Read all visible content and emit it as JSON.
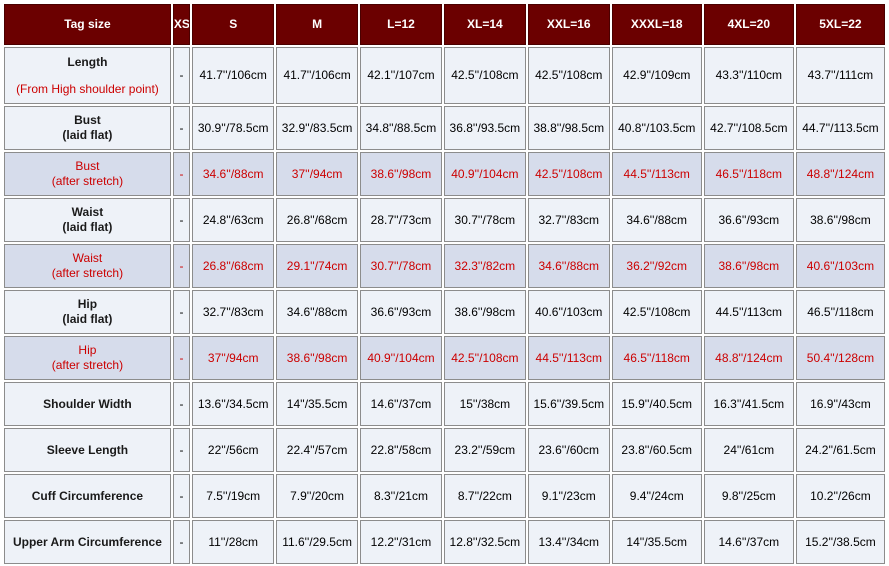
{
  "headers": [
    "Tag size",
    "XS",
    "S",
    "M",
    "L=12",
    "XL=14",
    "XXL=16",
    "XXXL=18",
    "4XL=20",
    "5XL=22"
  ],
  "rows": [
    {
      "label_line1": "Length",
      "label_line2": "(From High shoulder point)",
      "highlight": false,
      "values": [
        "-",
        "41.7''/106cm",
        "41.7''/106cm",
        "42.1''/107cm",
        "42.5''/108cm",
        "42.5''/108cm",
        "42.9''/109cm",
        "43.3''/110cm",
        "43.7''/111cm"
      ]
    },
    {
      "label_line1": "Bust",
      "label_line2": "(laid flat)",
      "highlight": false,
      "values": [
        "-",
        "30.9''/78.5cm",
        "32.9''/83.5cm",
        "34.8''/88.5cm",
        "36.8''/93.5cm",
        "38.8''/98.5cm",
        "40.8''/103.5cm",
        "42.7''/108.5cm",
        "44.7''/113.5cm"
      ]
    },
    {
      "label_line1": "Bust",
      "label_line2": "(after stretch)",
      "highlight": true,
      "values": [
        "-",
        "34.6''/88cm",
        "37''/94cm",
        "38.6''/98cm",
        "40.9''/104cm",
        "42.5''/108cm",
        "44.5''/113cm",
        "46.5''/118cm",
        "48.8''/124cm"
      ]
    },
    {
      "label_line1": "Waist",
      "label_line2": "(laid flat)",
      "highlight": false,
      "values": [
        "-",
        "24.8''/63cm",
        "26.8''/68cm",
        "28.7''/73cm",
        "30.7''/78cm",
        "32.7''/83cm",
        "34.6''/88cm",
        "36.6''/93cm",
        "38.6''/98cm"
      ]
    },
    {
      "label_line1": "Waist",
      "label_line2": "(after stretch)",
      "highlight": true,
      "values": [
        "-",
        "26.8''/68cm",
        "29.1''/74cm",
        "30.7''/78cm",
        "32.3''/82cm",
        "34.6''/88cm",
        "36.2''/92cm",
        "38.6''/98cm",
        "40.6''/103cm"
      ]
    },
    {
      "label_line1": "Hip",
      "label_line2": "(laid flat)",
      "highlight": false,
      "values": [
        "-",
        "32.7''/83cm",
        "34.6''/88cm",
        "36.6''/93cm",
        "38.6''/98cm",
        "40.6''/103cm",
        "42.5''/108cm",
        "44.5''/113cm",
        "46.5''/118cm"
      ]
    },
    {
      "label_line1": "Hip",
      "label_line2": "(after stretch)",
      "highlight": true,
      "values": [
        "-",
        "37''/94cm",
        "38.6''/98cm",
        "40.9''/104cm",
        "42.5''/108cm",
        "44.5''/113cm",
        "46.5''/118cm",
        "48.8''/124cm",
        "50.4''/128cm"
      ]
    },
    {
      "label_line1": "Shoulder Width",
      "label_line2": "",
      "highlight": false,
      "values": [
        "-",
        "13.6''/34.5cm",
        "14''/35.5cm",
        "14.6''/37cm",
        "15''/38cm",
        "15.6''/39.5cm",
        "15.9''/40.5cm",
        "16.3''/41.5cm",
        "16.9''/43cm"
      ]
    },
    {
      "label_line1": "Sleeve Length",
      "label_line2": "",
      "highlight": false,
      "values": [
        "-",
        "22''/56cm",
        "22.4''/57cm",
        "22.8''/58cm",
        "23.2''/59cm",
        "23.6''/60cm",
        "23.8''/60.5cm",
        "24''/61cm",
        "24.2''/61.5cm"
      ]
    },
    {
      "label_line1": "Cuff Circumference",
      "label_line2": "",
      "highlight": false,
      "values": [
        "-",
        "7.5''/19cm",
        "7.9''/20cm",
        "8.3''/21cm",
        "8.7''/22cm",
        "9.1''/23cm",
        "9.4''/24cm",
        "9.8''/25cm",
        "10.2''/26cm"
      ]
    },
    {
      "label_line1": "Upper Arm Circumference",
      "label_line2": "",
      "highlight": false,
      "values": [
        "-",
        "11''/28cm",
        "11.6''/29.5cm",
        "12.2''/31cm",
        "12.8''/32.5cm",
        "13.4''/34cm",
        "14''/35.5cm",
        "14.6''/37cm",
        "15.2''/38.5cm"
      ]
    }
  ]
}
